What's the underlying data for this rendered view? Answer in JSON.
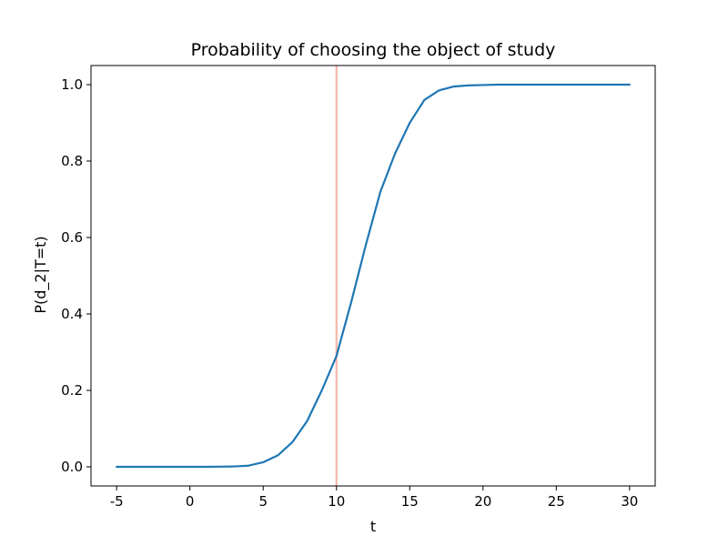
{
  "chart_data": {
    "type": "line",
    "title": "Probability of choosing the object of study",
    "xlabel": "t",
    "ylabel": "P(d_2|T=t)",
    "xlim": [
      -6.75,
      31.75
    ],
    "ylim": [
      -0.05,
      1.05
    ],
    "xticks": [
      -5,
      0,
      5,
      10,
      15,
      20,
      25,
      30
    ],
    "yticks": [
      0.0,
      0.2,
      0.4,
      0.6,
      0.8,
      1.0
    ],
    "ytick_labels": [
      "0.0",
      "0.2",
      "0.4",
      "0.6",
      "0.8",
      "1.0"
    ],
    "grid": false,
    "legend": "none",
    "series": [
      {
        "color": "#1f77b4",
        "x": [
          -5,
          -4,
          -3,
          -2,
          -1,
          0,
          1,
          2,
          3,
          4,
          5,
          6,
          7,
          8,
          9,
          10,
          11,
          12,
          13,
          14,
          15,
          16,
          17,
          18,
          19,
          20,
          21,
          22,
          23,
          24,
          25,
          26,
          27,
          28,
          29,
          30
        ],
        "y": [
          0.0,
          0.0,
          0.0,
          0.0,
          0.0,
          0.0,
          0.0,
          0.0005,
          0.001,
          0.003,
          0.012,
          0.03,
          0.065,
          0.12,
          0.2,
          0.29,
          0.43,
          0.58,
          0.72,
          0.82,
          0.9,
          0.96,
          0.985,
          0.995,
          0.998,
          0.999,
          1.0,
          1.0,
          1.0,
          1.0,
          1.0,
          1.0,
          1.0,
          1.0,
          1.0,
          1.0
        ]
      }
    ],
    "vline": {
      "x": 10,
      "color": "#f4b3a8"
    }
  }
}
